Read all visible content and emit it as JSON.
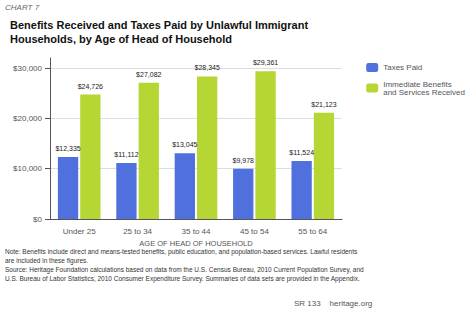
{
  "chart_data": {
    "type": "bar",
    "title": "Benefits Received and Taxes Paid by Unlawful Immigrant\nHouseholds, by Age of Head of Household",
    "annotations": [
      "CHART 7",
      "Note: Benefits include direct and means-tested benefits, public education, and population-based services. Lawful residents",
      "are included in these figures.",
      "Source: Heritage Foundation calculations based on data from the U.S. Census Bureau, 2010 Current Population Survey, and",
      "U.S. Bureau of Labor Statistics, 2010 Consumer Expenditure Survey. Summaries of data sets are provided in the Appendix.",
      "SR 133    heritage.org"
    ],
    "xlabel": "AGE OF HEAD OF HOUSEHOLD",
    "categories": [
      "Under 25",
      "25 to 34",
      "35 to 44",
      "45 to 54",
      "55 to 64"
    ],
    "series": [
      {
        "name": "Taxes Paid",
        "values": [
          12335,
          11112,
          13045,
          9978,
          11524
        ],
        "value_labels": [
          "$12,335",
          "$11,112",
          "$13,045",
          "$9,978",
          "$11,524"
        ]
      },
      {
        "name": "Immediate Benefits\nand Services Received",
        "values": [
          24726,
          27082,
          28345,
          29361,
          21123
        ],
        "value_labels": [
          "$24,726",
          "$27,082",
          "$28,345",
          "$29,361",
          "$21,123"
        ]
      }
    ],
    "ylim": [
      0,
      32000
    ],
    "yticks": [
      {
        "value": 0,
        "label": "$0"
      },
      {
        "value": 10000,
        "label": "$10,000"
      },
      {
        "value": 20000,
        "label": "$20,000"
      },
      {
        "value": 30000,
        "label": "$30,000"
      }
    ],
    "grid": true,
    "legend": "upper right",
    "data_labels": true
  }
}
